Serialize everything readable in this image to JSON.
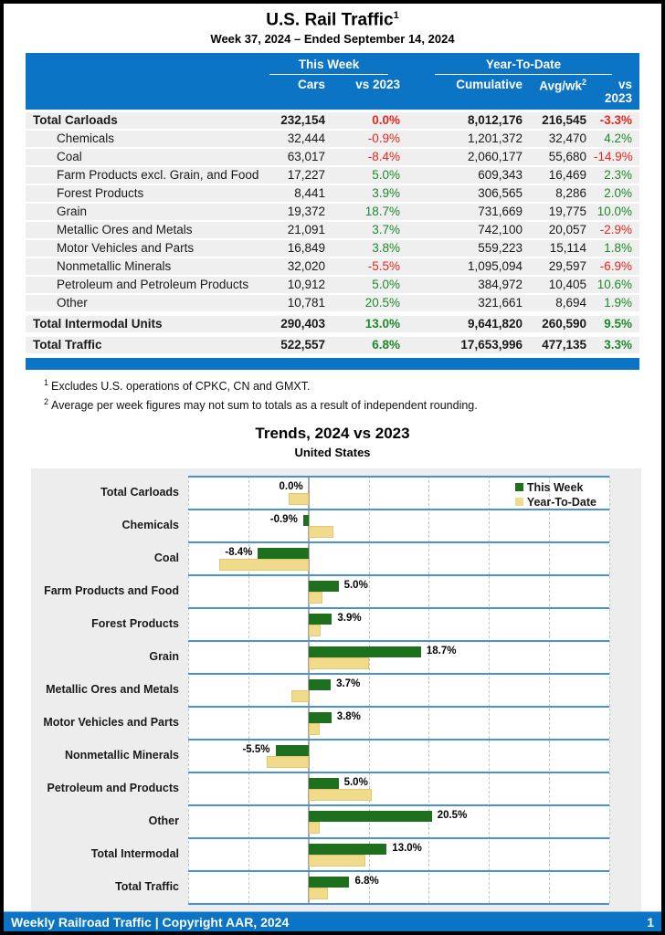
{
  "title": "U.S. Rail Traffic",
  "title_sup": "1",
  "subtitle": "Week 37, 2024 – Ended September 14, 2024",
  "table": {
    "group_headers": {
      "this_week": "This Week",
      "ytd": "Year-To-Date"
    },
    "columns": [
      "Cars",
      "vs 2023",
      "Cumulative",
      "Avg/wk",
      "vs 2023"
    ],
    "avgwk_sup": "2",
    "rows": [
      {
        "label": "Total Carloads",
        "total": true,
        "cars": "232,154",
        "wk_pct": "0.0%",
        "wk_color": "red",
        "cum": "8,012,176",
        "avg": "216,545",
        "ytd_pct": "-3.3%",
        "ytd_color": "red"
      },
      {
        "label": "Chemicals",
        "total": false,
        "cars": "32,444",
        "wk_pct": "-0.9%",
        "wk_color": "red",
        "cum": "1,201,372",
        "avg": "32,470",
        "ytd_pct": "4.2%",
        "ytd_color": "green"
      },
      {
        "label": "Coal",
        "total": false,
        "cars": "63,017",
        "wk_pct": "-8.4%",
        "wk_color": "red",
        "cum": "2,060,177",
        "avg": "55,680",
        "ytd_pct": "-14.9%",
        "ytd_color": "red"
      },
      {
        "label": "Farm Products excl. Grain, and Food",
        "total": false,
        "cars": "17,227",
        "wk_pct": "5.0%",
        "wk_color": "green",
        "cum": "609,343",
        "avg": "16,469",
        "ytd_pct": "2.3%",
        "ytd_color": "green"
      },
      {
        "label": "Forest Products",
        "total": false,
        "cars": "8,441",
        "wk_pct": "3.9%",
        "wk_color": "green",
        "cum": "306,565",
        "avg": "8,286",
        "ytd_pct": "2.0%",
        "ytd_color": "green"
      },
      {
        "label": "Grain",
        "total": false,
        "cars": "19,372",
        "wk_pct": "18.7%",
        "wk_color": "green",
        "cum": "731,669",
        "avg": "19,775",
        "ytd_pct": "10.0%",
        "ytd_color": "green"
      },
      {
        "label": "Metallic Ores and Metals",
        "total": false,
        "cars": "21,091",
        "wk_pct": "3.7%",
        "wk_color": "green",
        "cum": "742,100",
        "avg": "20,057",
        "ytd_pct": "-2.9%",
        "ytd_color": "red"
      },
      {
        "label": "Motor Vehicles and Parts",
        "total": false,
        "cars": "16,849",
        "wk_pct": "3.8%",
        "wk_color": "green",
        "cum": "559,223",
        "avg": "15,114",
        "ytd_pct": "1.8%",
        "ytd_color": "green"
      },
      {
        "label": "Nonmetallic Minerals",
        "total": false,
        "cars": "32,020",
        "wk_pct": "-5.5%",
        "wk_color": "red",
        "cum": "1,095,094",
        "avg": "29,597",
        "ytd_pct": "-6.9%",
        "ytd_color": "red"
      },
      {
        "label": "Petroleum and Petroleum Products",
        "total": false,
        "cars": "10,912",
        "wk_pct": "5.0%",
        "wk_color": "green",
        "cum": "384,972",
        "avg": "10,405",
        "ytd_pct": "10.6%",
        "ytd_color": "green"
      },
      {
        "label": "Other",
        "total": false,
        "cars": "10,781",
        "wk_pct": "20.5%",
        "wk_color": "green",
        "cum": "321,661",
        "avg": "8,694",
        "ytd_pct": "1.9%",
        "ytd_color": "green"
      },
      {
        "label": "Total Intermodal Units",
        "total": true,
        "cars": "290,403",
        "wk_pct": "13.0%",
        "wk_color": "green",
        "cum": "9,641,820",
        "avg": "260,590",
        "ytd_pct": "9.5%",
        "ytd_color": "green"
      },
      {
        "label": "Total Traffic",
        "total": true,
        "cars": "522,557",
        "wk_pct": "6.8%",
        "wk_color": "green",
        "cum": "17,653,996",
        "avg": "477,135",
        "ytd_pct": "3.3%",
        "ytd_color": "green"
      }
    ]
  },
  "footnotes": [
    {
      "sup": "1",
      "text": "Excludes U.S. operations of CPKC, CN and GMXT."
    },
    {
      "sup": "2",
      "text": "Average per week figures may not sum to totals as a result of independent rounding."
    }
  ],
  "chart_data": {
    "type": "bar",
    "orientation": "horizontal",
    "title": "Trends, 2024 vs 2023",
    "subtitle": "United States",
    "categories": [
      "Total Carloads",
      "Chemicals",
      "Coal",
      "Farm Products and Food",
      "Forest Products",
      "Grain",
      "Metallic Ores and Metals",
      "Motor Vehicles and Parts",
      "Nonmetallic Minerals",
      "Petroleum and Products",
      "Other",
      "Total Intermodal",
      "Total Traffic"
    ],
    "series": [
      {
        "name": "This Week",
        "color": "#1e701e",
        "values": [
          0.0,
          -0.9,
          -8.4,
          5.0,
          3.9,
          18.7,
          3.7,
          3.8,
          -5.5,
          5.0,
          20.5,
          13.0,
          6.8
        ]
      },
      {
        "name": "Year-To-Date",
        "color": "#f0db8d",
        "values": [
          -3.3,
          4.2,
          -14.9,
          2.3,
          2.0,
          10.0,
          -2.9,
          1.8,
          -6.9,
          10.6,
          1.9,
          9.5,
          3.3
        ]
      }
    ],
    "bar_labels": [
      "0.0%",
      "-0.9%",
      "-8.4%",
      "5.0%",
      "3.9%",
      "18.7%",
      "3.7%",
      "3.8%",
      "-5.5%",
      "5.0%",
      "20.5%",
      "13.0%",
      "6.8%"
    ],
    "xlim": [
      -20,
      50
    ],
    "xtick_values": [
      -20,
      -10,
      0,
      10,
      20,
      30,
      40,
      50
    ],
    "xtick_labels": [
      "-20%",
      "-10%",
      "0%",
      "10%",
      "20%",
      "30%",
      "40%",
      "50%"
    ],
    "legend_position": "top-right",
    "grid": true
  },
  "footer": {
    "left": "Weekly Railroad Traffic | Copyright AAR, 2024",
    "page": "1"
  }
}
